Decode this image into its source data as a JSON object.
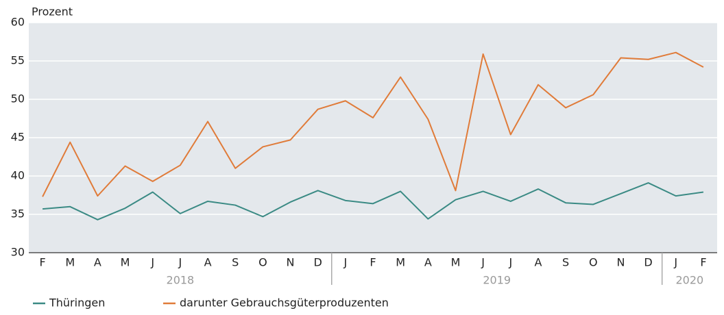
{
  "chart_data": {
    "type": "line",
    "ylabel": "Prozent",
    "categories": [
      "F",
      "M",
      "A",
      "M",
      "J",
      "J",
      "A",
      "S",
      "O",
      "N",
      "D",
      "J",
      "F",
      "M",
      "A",
      "M",
      "J",
      "J",
      "A",
      "S",
      "O",
      "N",
      "D",
      "J",
      "F"
    ],
    "category_groups": [
      {
        "label": "2018",
        "span": 11
      },
      {
        "label": "2019",
        "span": 12
      },
      {
        "label": "2020",
        "span": 2
      }
    ],
    "series": [
      {
        "name": "Thüringen",
        "color": "#3a8a84",
        "values": [
          35.7,
          36.0,
          34.3,
          35.8,
          37.9,
          35.1,
          36.7,
          36.2,
          34.7,
          36.6,
          38.1,
          36.8,
          36.4,
          38.0,
          34.4,
          36.9,
          38.0,
          36.7,
          38.3,
          36.5,
          36.3,
          37.7,
          39.1,
          37.4,
          37.9
        ]
      },
      {
        "name": "darunter Gebrauchsgüterproduzenten",
        "color": "#e07b39",
        "values": [
          37.3,
          44.4,
          37.4,
          41.3,
          39.3,
          41.4,
          47.1,
          41.0,
          43.8,
          44.7,
          48.7,
          49.8,
          47.6,
          52.9,
          47.4,
          38.1,
          55.9,
          45.4,
          51.9,
          48.9,
          50.6,
          55.4,
          55.2,
          56.1,
          54.2
        ]
      }
    ],
    "ylim": [
      30,
      60
    ],
    "yticks": [
      30,
      35,
      40,
      45,
      50,
      55,
      60
    ],
    "grid": true
  }
}
